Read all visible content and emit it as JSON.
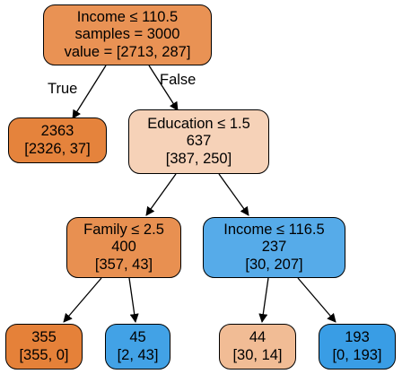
{
  "tree": {
    "nodes": [
      {
        "id": "root",
        "lines": [
          "Income ≤ 110.5",
          "samples = 3000",
          "value = [2713, 287]"
        ],
        "fill": "#e99254"
      },
      {
        "id": "leaf-2363",
        "lines": [
          "2363",
          "[2326, 37]"
        ],
        "fill": "#e5833c"
      },
      {
        "id": "education",
        "lines": [
          "Education ≤ 1.5",
          "637",
          "[387, 250]"
        ],
        "fill": "#f6d2b8"
      },
      {
        "id": "family",
        "lines": [
          "Family ≤ 2.5",
          "400",
          "[357, 43]"
        ],
        "fill": "#e89051"
      },
      {
        "id": "income-116",
        "lines": [
          "Income ≤ 116.5",
          "237",
          "[30, 207]"
        ],
        "fill": "#56abe9"
      },
      {
        "id": "leaf-355",
        "lines": [
          "355",
          "[355, 0]"
        ],
        "fill": "#e58139"
      },
      {
        "id": "leaf-45",
        "lines": [
          "45",
          "[2, 43]"
        ],
        "fill": "#42a2e6"
      },
      {
        "id": "leaf-44",
        "lines": [
          "44",
          "[30, 14]"
        ],
        "fill": "#f1bc95"
      },
      {
        "id": "leaf-193",
        "lines": [
          "193",
          "[0, 193]"
        ],
        "fill": "#399de5"
      }
    ],
    "edges": [
      {
        "from": "root",
        "to": "leaf-2363",
        "label": "True"
      },
      {
        "from": "root",
        "to": "education",
        "label": "False"
      },
      {
        "from": "education",
        "to": "family",
        "label": ""
      },
      {
        "from": "education",
        "to": "income-116",
        "label": ""
      },
      {
        "from": "family",
        "to": "leaf-355",
        "label": ""
      },
      {
        "from": "family",
        "to": "leaf-45",
        "label": ""
      },
      {
        "from": "income-116",
        "to": "leaf-44",
        "label": ""
      },
      {
        "from": "income-116",
        "to": "leaf-193",
        "label": ""
      }
    ]
  }
}
